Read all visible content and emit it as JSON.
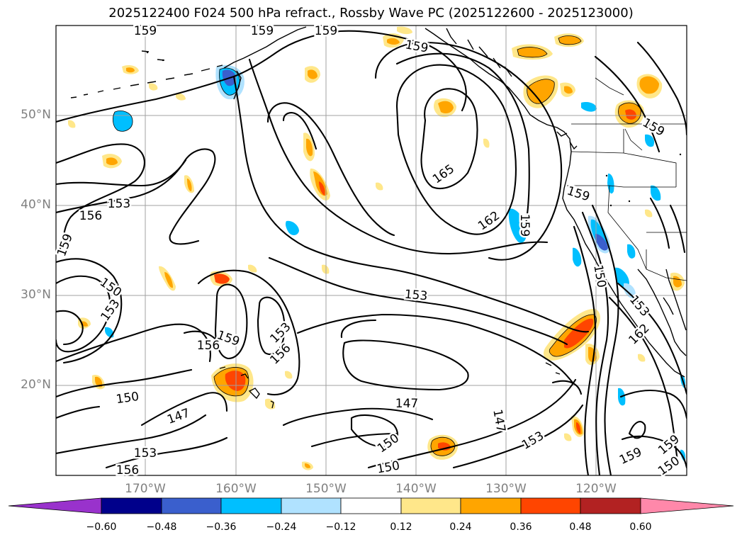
{
  "title": "2025122400 F024 500 hPa refract., Rossby Wave PC (2025122600 - 2025123000)",
  "lat_labels": [
    "50°N",
    "40°N",
    "30°N",
    "20°N"
  ],
  "lon_labels": [
    "170°W",
    "160°W",
    "150°W",
    "140°W",
    "130°W",
    "120°W"
  ],
  "contour_labels": [
    "159",
    "159",
    "159",
    "165",
    "162",
    "159",
    "153",
    "156",
    "159",
    "150",
    "153",
    "153",
    "156",
    "159",
    "156",
    "153",
    "150",
    "147",
    "153",
    "147",
    "150",
    "147",
    "153",
    "150",
    "159",
    "150",
    "159",
    "162",
    "153",
    "150",
    "156",
    "159",
    "159",
    "159"
  ],
  "colorbar": {
    "ticks": [
      "−0.60",
      "−0.48",
      "−0.36",
      "−0.24",
      "−0.12",
      "0.12",
      "0.24",
      "0.36",
      "0.48",
      "0.60"
    ],
    "colors": [
      "#9932cc",
      "#00008b",
      "#3a5fcd",
      "#00bfff",
      "#b0e2ff",
      "#ffffff",
      "#ffe78a",
      "#ffa500",
      "#ff4500",
      "#b22222",
      "#ff88aa"
    ]
  }
}
